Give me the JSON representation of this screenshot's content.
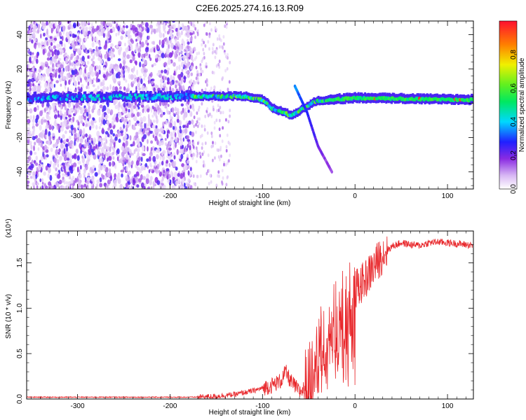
{
  "figure_title": "C2E6.2025.274.16.13.R09",
  "chart_data": [
    {
      "type": "heatmap",
      "title": "C2E6.2025.274.16.13.R09",
      "xlabel": "Height of straight line (km)",
      "ylabel": "Frequency (Hz)",
      "xlim": [
        -355,
        128
      ],
      "ylim": [
        -50,
        48
      ],
      "x_ticks": [
        -300,
        -200,
        -100,
        0,
        100
      ],
      "x_tick_labels": [
        "-300",
        "-200",
        "-100",
        "0",
        "100"
      ],
      "y_ticks": [
        -40,
        -20,
        0,
        20,
        40
      ],
      "y_tick_labels": [
        "-40",
        "-20",
        "0",
        "20",
        "40"
      ],
      "grid": false,
      "colorbar": {
        "label": "Normalized spectral amplitude",
        "range": [
          0,
          1
        ],
        "ticks": [
          0.0,
          0.2,
          0.4,
          0.6,
          0.8
        ],
        "tick_labels": [
          "0.0",
          "0.2",
          "0.4",
          "0.6",
          "0.8"
        ],
        "colormap": "white-violet-blue-cyan-green-yellow-red"
      },
      "features": {
        "noise_region_x": [
          -355,
          -175
        ],
        "sparse_noise_region_x": [
          -175,
          -135
        ],
        "carrier_track": [
          {
            "x": -355,
            "y": 3
          },
          {
            "x": -175,
            "y": 4
          },
          {
            "x": -120,
            "y": 4
          },
          {
            "x": -100,
            "y": 2
          },
          {
            "x": -90,
            "y": -3
          },
          {
            "x": -70,
            "y": -7
          },
          {
            "x": -55,
            "y": -3
          },
          {
            "x": -45,
            "y": 1
          },
          {
            "x": -30,
            "y": 2
          },
          {
            "x": 0,
            "y": 3
          },
          {
            "x": 128,
            "y": 2
          }
        ],
        "secondary_branch": [
          {
            "x": -65,
            "y": 10
          },
          {
            "x": -52,
            "y": -5
          },
          {
            "x": -40,
            "y": -25
          },
          {
            "x": -25,
            "y": -40
          }
        ]
      }
    },
    {
      "type": "line",
      "xlabel": "Height of straight line (km)",
      "ylabel": "SNR (10 * v/v)",
      "y_multiplier_label": "(x10⁴)",
      "xlim": [
        -355,
        128
      ],
      "ylim": [
        0,
        1.85
      ],
      "x_ticks": [
        -300,
        -200,
        -100,
        0,
        100
      ],
      "x_tick_labels": [
        "-300",
        "-200",
        "-100",
        "0",
        "100"
      ],
      "y_ticks": [
        0.0,
        0.5,
        1.0,
        1.5
      ],
      "y_tick_labels": [
        "0.0",
        "0.5",
        "1.0",
        "1.5"
      ],
      "grid": false,
      "series": [
        {
          "color": "#e8262a",
          "x": [
            -355,
            -300,
            -250,
            -200,
            -175,
            -150,
            -130,
            -110,
            -100,
            -90,
            -80,
            -75,
            -70,
            -60,
            -50,
            -45,
            -40,
            -35,
            -30,
            -25,
            -20,
            -15,
            -10,
            -5,
            0,
            10,
            20,
            30,
            40,
            50,
            60,
            70,
            80,
            90,
            100,
            110,
            120,
            128
          ],
          "y": [
            0.02,
            0.02,
            0.02,
            0.02,
            0.02,
            0.03,
            0.05,
            0.09,
            0.12,
            0.15,
            0.2,
            0.3,
            0.2,
            0.08,
            0.15,
            0.35,
            0.6,
            0.7,
            0.75,
            0.8,
            0.9,
            0.95,
            1.0,
            1.1,
            1.2,
            1.3,
            1.45,
            1.6,
            1.68,
            1.72,
            1.7,
            1.69,
            1.72,
            1.73,
            1.72,
            1.71,
            1.7,
            1.69
          ]
        }
      ]
    }
  ]
}
